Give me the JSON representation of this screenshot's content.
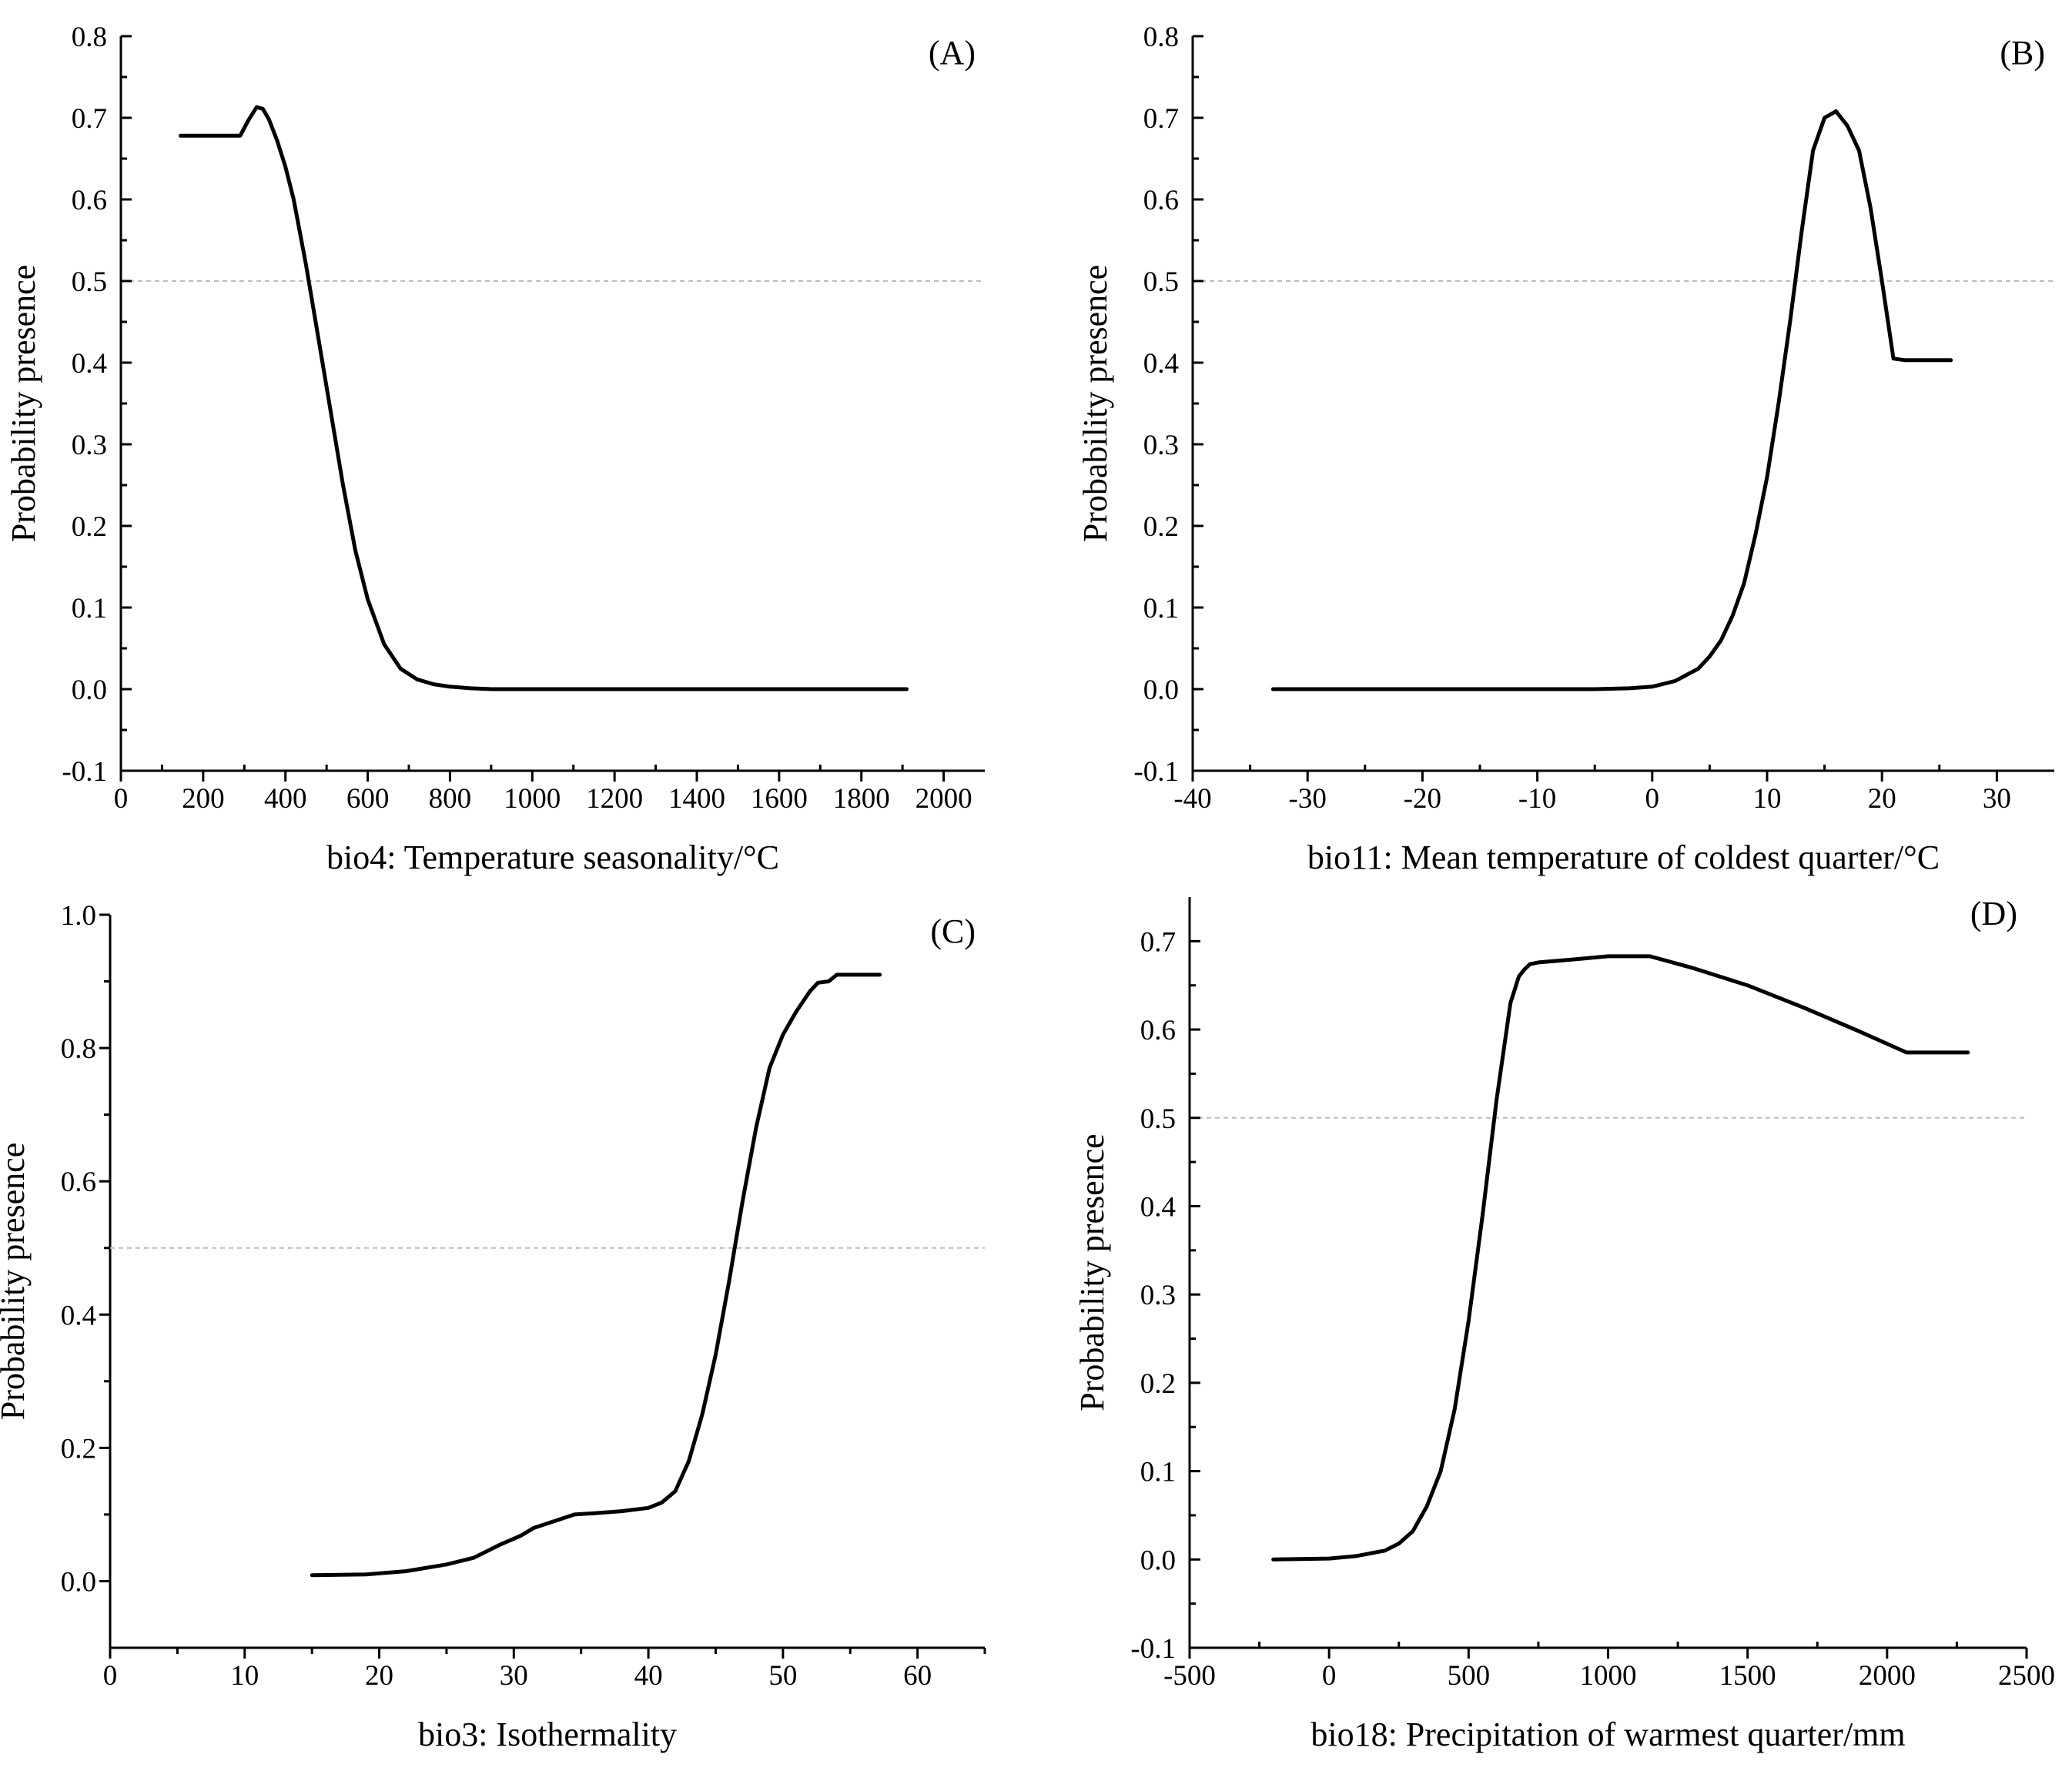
{
  "chart_data": [
    {
      "type": "line",
      "panel": "(A)",
      "xlabel": "bio4: Temperature seasonality/°C",
      "ylabel": "Probability presence",
      "xlim": [
        0,
        2100
      ],
      "ylim": [
        -0.1,
        0.8
      ],
      "xticks": [
        0,
        200,
        400,
        600,
        800,
        1000,
        1200,
        1400,
        1600,
        1800,
        2000
      ],
      "yticks": [
        -0.1,
        0.0,
        0.1,
        0.2,
        0.3,
        0.4,
        0.5,
        0.6,
        0.7,
        0.8
      ],
      "ytick_labels": [
        "-0.1",
        "0.0",
        "0.1",
        "0.2",
        "0.3",
        "0.4",
        "0.5",
        "0.6",
        "0.7",
        "0.8"
      ],
      "reference_line": 0.5,
      "series": [
        {
          "name": "response",
          "x": [
            145,
            290,
            310,
            330,
            345,
            360,
            380,
            400,
            420,
            450,
            480,
            510,
            540,
            570,
            600,
            640,
            680,
            720,
            760,
            800,
            850,
            900,
            1000,
            1200,
            1500,
            1910
          ],
          "y": [
            0.678,
            0.678,
            0.697,
            0.713,
            0.711,
            0.698,
            0.672,
            0.64,
            0.6,
            0.52,
            0.43,
            0.34,
            0.25,
            0.17,
            0.11,
            0.055,
            0.025,
            0.012,
            0.006,
            0.003,
            0.001,
            0.0,
            0.0,
            0.0,
            0.0,
            0.0
          ]
        }
      ]
    },
    {
      "type": "line",
      "panel": "(B)",
      "xlabel": "bio11: Mean temperature of coldest quarter/°C",
      "ylabel": "Probability presence",
      "xlim": [
        -40,
        35
      ],
      "ylim": [
        -0.1,
        0.8
      ],
      "xticks": [
        -40,
        -30,
        -20,
        -10,
        0,
        10,
        20,
        30
      ],
      "yticks": [
        -0.1,
        0.0,
        0.1,
        0.2,
        0.3,
        0.4,
        0.5,
        0.6,
        0.7,
        0.8
      ],
      "ytick_labels": [
        "-0.1",
        "0.0",
        "0.1",
        "0.2",
        "0.3",
        "0.4",
        "0.5",
        "0.6",
        "0.7",
        "0.8"
      ],
      "reference_line": 0.5,
      "series": [
        {
          "name": "response",
          "x": [
            -33,
            -20,
            -10,
            -5,
            -2,
            0,
            2,
            4,
            5,
            6,
            7,
            8,
            9,
            10,
            11,
            12,
            13,
            14,
            15,
            16,
            17,
            18,
            19,
            20,
            21,
            22,
            26
          ],
          "y": [
            0.0,
            0.0,
            0.0,
            0.0,
            0.001,
            0.003,
            0.01,
            0.025,
            0.04,
            0.06,
            0.09,
            0.13,
            0.19,
            0.26,
            0.35,
            0.45,
            0.56,
            0.66,
            0.7,
            0.708,
            0.69,
            0.66,
            0.59,
            0.5,
            0.405,
            0.403,
            0.403
          ]
        }
      ]
    },
    {
      "type": "line",
      "panel": "(C)",
      "xlabel": "bio3: Isothermality",
      "ylabel": "Probability presence",
      "xlim": [
        0,
        65
      ],
      "ylim": [
        -0.1,
        1.0
      ],
      "xticks": [
        0,
        10,
        20,
        30,
        40,
        50,
        60
      ],
      "minor_xticks": [
        5,
        15,
        25,
        35,
        45,
        55,
        65
      ],
      "yticks": [
        0.0,
        0.2,
        0.4,
        0.6,
        0.8,
        1.0
      ],
      "ytick_labels": [
        "0.0",
        "0.2",
        "0.4",
        "0.6",
        "0.8",
        "1.0"
      ],
      "minor_yticks": [
        0.1,
        0.3,
        0.5,
        0.7,
        0.9
      ],
      "reference_line": 0.5,
      "series": [
        {
          "name": "response",
          "x": [
            15,
            19,
            22,
            25,
            27,
            29,
            30.5,
            31.5,
            33,
            34.5,
            36,
            38,
            40,
            41,
            42,
            43,
            44,
            45,
            46,
            47,
            48,
            49,
            50,
            51,
            52,
            52.6,
            53.4,
            54,
            57.2
          ],
          "y": [
            0.009,
            0.01,
            0.015,
            0.025,
            0.035,
            0.055,
            0.068,
            0.08,
            0.09,
            0.1,
            0.102,
            0.105,
            0.11,
            0.118,
            0.135,
            0.18,
            0.25,
            0.34,
            0.45,
            0.57,
            0.68,
            0.77,
            0.82,
            0.855,
            0.885,
            0.898,
            0.9,
            0.91,
            0.91
          ]
        }
      ]
    },
    {
      "type": "line",
      "panel": "(D)",
      "xlabel": "bio18: Precipitation of warmest quarter/mm",
      "ylabel": "Probability presence",
      "xlim": [
        -500,
        2500
      ],
      "ylim": [
        -0.1,
        0.75
      ],
      "xticks": [
        -500,
        0,
        500,
        1000,
        1500,
        2000,
        2500
      ],
      "yticks": [
        -0.1,
        0.0,
        0.1,
        0.2,
        0.3,
        0.4,
        0.5,
        0.6,
        0.7
      ],
      "ytick_labels": [
        "-0.1",
        "0.0",
        "0.1",
        "0.2",
        "0.3",
        "0.4",
        "0.5",
        "0.6",
        "0.7"
      ],
      "reference_line": 0.5,
      "series": [
        {
          "name": "response",
          "x": [
            -200,
            0,
            100,
            200,
            250,
            300,
            350,
            400,
            450,
            500,
            550,
            600,
            650,
            680,
            700,
            720,
            750,
            900,
            1000,
            1150,
            1300,
            1500,
            1700,
            1900,
            2070,
            2290
          ],
          "y": [
            0.0,
            0.001,
            0.004,
            0.01,
            0.018,
            0.032,
            0.06,
            0.1,
            0.17,
            0.27,
            0.39,
            0.52,
            0.63,
            0.66,
            0.668,
            0.674,
            0.676,
            0.68,
            0.683,
            0.683,
            0.67,
            0.65,
            0.625,
            0.598,
            0.574,
            0.574
          ]
        }
      ]
    }
  ]
}
